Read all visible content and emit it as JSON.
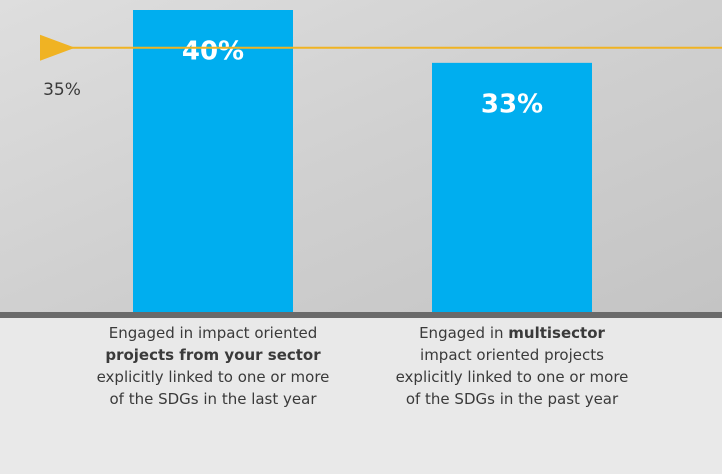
{
  "chart_data": {
    "type": "bar",
    "categories": [
      [
        "Engaged in impact oriented",
        "projects from your sector",
        "explicitly linked to one or more of the SDGs in the last year"
      ],
      [
        "Engaged in",
        "multisector",
        "impact oriented projects explicitly linked to one or more of the SDGs in the past year"
      ]
    ],
    "values": [
      40,
      33
    ],
    "value_labels": [
      "40%",
      "33%"
    ],
    "color": "#00aeef",
    "ylim": [
      0,
      40
    ],
    "reference": {
      "value": 35,
      "label": "35%",
      "color": "#f0b323"
    }
  }
}
